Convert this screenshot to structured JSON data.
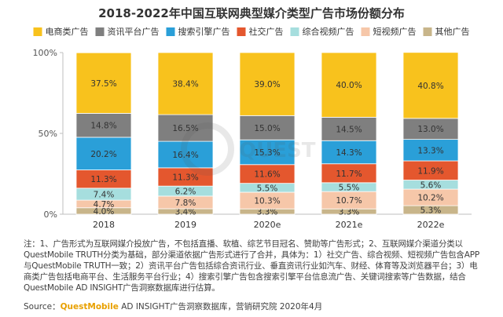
{
  "chart_data": {
    "type": "bar",
    "stacked": true,
    "title": "2018-2022年中国互联网典型媒介类型广告市场份额分布",
    "categories": [
      "2018",
      "2019",
      "2020e",
      "2021e",
      "2022e"
    ],
    "ylim": [
      0,
      100
    ],
    "yticks": [
      "0%",
      "50%",
      "100%"
    ],
    "grid": false,
    "legend_position": "top",
    "series": [
      {
        "name": "其他广告",
        "color": "#c8b58a",
        "values": [
          4.0,
          3.4,
          3.3,
          3.3,
          5.3
        ],
        "labels": [
          "4.0%",
          "3.4%",
          "3.3%",
          "3.3%",
          "5.3%"
        ]
      },
      {
        "name": "短视频广告",
        "color": "#f6c7a9",
        "values": [
          4.7,
          7.8,
          10.3,
          10.7,
          10.2
        ],
        "labels": [
          "4.7%",
          "7.8%",
          "10.3%",
          "10.7%",
          "10.2%"
        ]
      },
      {
        "name": "综合视频广告",
        "color": "#a6dede",
        "values": [
          7.4,
          6.2,
          5.5,
          5.5,
          5.6
        ],
        "labels": [
          "7.4%",
          "6.2%",
          "5.5%",
          "5.5%",
          "5.6%"
        ]
      },
      {
        "name": "社交广告",
        "color": "#e4572e",
        "values": [
          11.3,
          11.3,
          11.6,
          11.7,
          11.9
        ],
        "labels": [
          "11.3%",
          "11.3%",
          "11.6%",
          "11.7%",
          "11.9%"
        ]
      },
      {
        "name": "搜索引擎广告",
        "color": "#2a9fd8",
        "values": [
          20.2,
          16.4,
          15.3,
          14.3,
          13.3
        ],
        "labels": [
          "20.2%",
          "16.4%",
          "15.3%",
          "14.3%",
          "13.3%"
        ]
      },
      {
        "name": "资讯平台广告",
        "color": "#7f7f7f",
        "values": [
          14.8,
          16.5,
          15.0,
          14.5,
          13.0
        ],
        "labels": [
          "14.8%",
          "16.5%",
          "15.0%",
          "14.5%",
          "13.0%"
        ]
      },
      {
        "name": "电商类广告",
        "color": "#f8c21d",
        "values": [
          37.5,
          38.4,
          39.0,
          40.0,
          40.8
        ],
        "labels": [
          "37.5%",
          "38.4%",
          "39.0%",
          "40.0%",
          "40.8%"
        ]
      }
    ],
    "legend_order": [
      "电商类广告",
      "资讯平台广告",
      "搜索引擎广告",
      "社交广告",
      "综合视频广告",
      "短视频广告",
      "其他广告"
    ]
  },
  "note": "注：1、广告形式为互联网媒介投放广告，不包括直播、软植、综艺节目冠名、赞助等广告形式；2、互联网媒介渠道分类以QuestMobile TRUTH分类为基础，部分渠道依据广告形式进行了合并，具体为：1）社交广告、综合视频、短视频广告包含APP与QuestMobile TRUTH一致；2）资讯平台广告包括综合资讯行业、垂直资讯行业如汽车、财经、体育等及浏览器平台；3）电商类广告包括电商平台、生活服务平台行业；4）搜索引擎广告包含搜索引擎平台信息流广告、关键词搜索等广告数据，结合QuestMobile AD INSIGHT广告洞察数据库进行估算。",
  "source": {
    "prefix": "Source：",
    "brand": "QuestMobile",
    "rest": " AD INSIGHT广告洞察数据库，营销研究院 2020年4月"
  },
  "watermark": "QUEST MOBILE",
  "colors": {
    "axis": "#bfbfbf",
    "label_dark": "#333333",
    "brand": "#e8a000"
  }
}
